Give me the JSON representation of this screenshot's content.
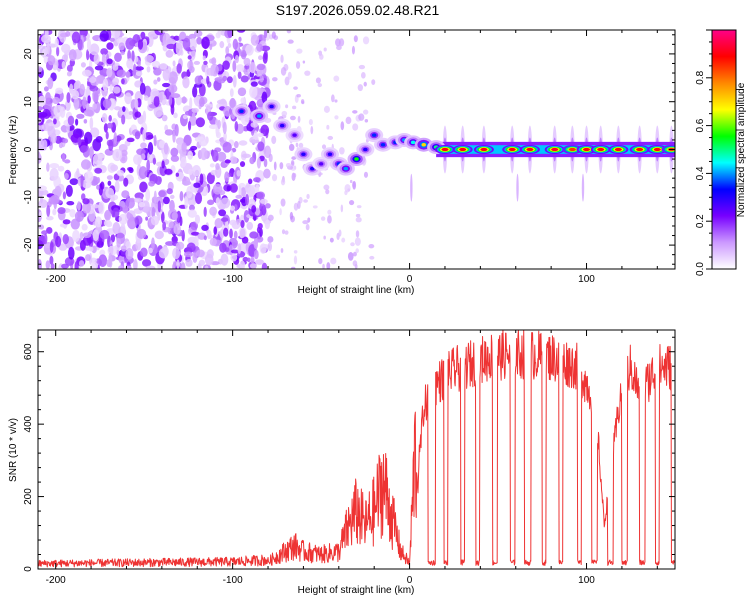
{
  "title": "S197.2026.059.02.48.R21",
  "chart_data": [
    {
      "type": "heatmap",
      "xlabel": "Height of straight line (km)",
      "ylabel": "Frequency (Hz)",
      "xlim": [
        -210,
        150
      ],
      "ylim": [
        -25,
        25
      ],
      "x_ticks": [
        -200,
        -100,
        0,
        100
      ],
      "x_tick_labels": [
        "-200",
        "-100",
        "0",
        "100"
      ],
      "y_ticks": [
        -20,
        -10,
        0,
        10,
        20
      ],
      "y_tick_labels": [
        "-20",
        "-10",
        "0",
        "10",
        "20"
      ],
      "colorbar": {
        "label": "Normalized spectral amplitude",
        "range": [
          0,
          1
        ],
        "ticks": [
          0.0,
          0.2,
          0.4,
          0.6,
          0.8
        ],
        "tick_labels": [
          "0.0",
          "0.2",
          "0.4",
          "0.6",
          "0.8"
        ],
        "colors": [
          "#ffffff",
          "#cc99ff",
          "#7700ff",
          "#0000ff",
          "#00ffff",
          "#00ff00",
          "#ffff00",
          "#ff8800",
          "#ff0000",
          "#ff0088"
        ]
      },
      "features": {
        "noise_region_km": [
          -210,
          -80
        ],
        "signal_track": [
          {
            "km": -95,
            "hz": 8,
            "amp": 0.35
          },
          {
            "km": -85,
            "hz": 7,
            "amp": 0.4
          },
          {
            "km": -78,
            "hz": 9,
            "amp": 0.3
          },
          {
            "km": -72,
            "hz": 5,
            "amp": 0.3
          },
          {
            "km": -65,
            "hz": 3,
            "amp": 0.25
          },
          {
            "km": -60,
            "hz": -1,
            "amp": 0.3
          },
          {
            "km": -55,
            "hz": -4,
            "amp": 0.3
          },
          {
            "km": -50,
            "hz": -3,
            "amp": 0.25
          },
          {
            "km": -45,
            "hz": -1,
            "amp": 0.3
          },
          {
            "km": -40,
            "hz": -3,
            "amp": 0.35
          },
          {
            "km": -36,
            "hz": -4,
            "amp": 0.4
          },
          {
            "km": -30,
            "hz": -2,
            "amp": 0.55
          },
          {
            "km": -25,
            "hz": 0,
            "amp": 0.3
          },
          {
            "km": -20,
            "hz": 3,
            "amp": 0.35
          },
          {
            "km": -15,
            "hz": 1,
            "amp": 0.35
          },
          {
            "km": -8,
            "hz": 1.5,
            "amp": 0.35
          },
          {
            "km": -3,
            "hz": 2,
            "amp": 0.4
          },
          {
            "km": 2,
            "hz": 1.5,
            "amp": 0.45
          },
          {
            "km": 8,
            "hz": 1,
            "amp": 0.7
          },
          {
            "km": 15,
            "hz": 0.5,
            "amp": 0.5
          }
        ],
        "carrier_hz": 0,
        "carrier_start_km": 15,
        "carrier_pulse_km": [
          20,
          30,
          42,
          58,
          68,
          82,
          92,
          100,
          108,
          118,
          130,
          140,
          148
        ],
        "carrier_pulse_amp": [
          0.9,
          0.9,
          0.9,
          0.9,
          0.9,
          0.92,
          0.85,
          0.9,
          0.9,
          0.9,
          0.88,
          0.9,
          0.85
        ],
        "spike_km": [
          1,
          61,
          98
        ]
      }
    },
    {
      "type": "line",
      "xlabel": "Height of straight line (km)",
      "ylabel": "SNR (10 * v/v)",
      "xlim": [
        -210,
        150
      ],
      "ylim": [
        0,
        660
      ],
      "x_ticks": [
        -200,
        -100,
        0,
        100
      ],
      "x_tick_labels": [
        "-200",
        "-100",
        "0",
        "100"
      ],
      "y_ticks": [
        0,
        200,
        400,
        600
      ],
      "y_tick_labels": [
        "0",
        "200",
        "400",
        "600"
      ],
      "line_color": "#ee3333",
      "envelope": {
        "x": [
          -210,
          -100,
          -80,
          -65,
          -60,
          -50,
          -40,
          -35,
          -30,
          -25,
          -20,
          -15,
          -10,
          -5,
          0,
          3,
          5,
          8,
          15,
          25,
          35,
          45,
          60,
          80,
          95,
          105,
          110,
          120,
          125,
          130,
          140,
          150
        ],
        "y": [
          15,
          20,
          25,
          80,
          60,
          50,
          60,
          140,
          200,
          150,
          200,
          300,
          180,
          60,
          20,
          400,
          300,
          480,
          550,
          590,
          610,
          630,
          640,
          630,
          600,
          500,
          130,
          550,
          600,
          520,
          600,
          600
        ]
      },
      "dropouts": [
        [
          10.5,
          14.5
        ],
        [
          19.5,
          21.5
        ],
        [
          29,
          31
        ],
        [
          37.5,
          39.5
        ],
        [
          47,
          49.5
        ],
        [
          57,
          59.5
        ],
        [
          65,
          68.5
        ],
        [
          75,
          77
        ],
        [
          84.5,
          86.5
        ],
        [
          95,
          97
        ],
        [
          103,
          106
        ],
        [
          112,
          115
        ],
        [
          120,
          123
        ],
        [
          130,
          133
        ],
        [
          139,
          141
        ],
        [
          148,
          150
        ]
      ]
    }
  ]
}
